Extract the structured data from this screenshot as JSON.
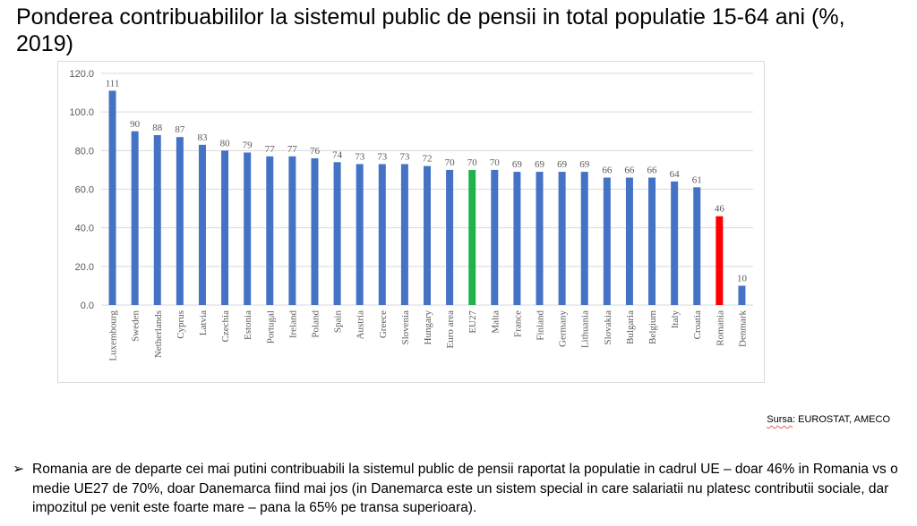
{
  "page": {
    "title": "Ponderea contribuabililor la sistemul public de pensii in total populatie 15-64 ani (%, 2019)",
    "source_label": "Sursa",
    "source_text": ": EUROSTAT, AMECO",
    "bullet_marker": "➢",
    "bullet_text": "Romania are de departe cei mai putini contribuabili la sistemul public de pensii raportat la populatie in cadrul UE – doar 46% in Romania vs o medie UE27 de 70%, doar Danemarca fiind mai jos (in Danemarca este un sistem special in care salariatii nu platesc contributii sociale, dar impozitul pe venit este foarte mare – pana la 65% pe transa superioara)."
  },
  "chart_data": {
    "type": "bar",
    "title": "",
    "xlabel": "",
    "ylabel": "",
    "ylim": [
      0,
      120
    ],
    "yticks": [
      "0.0",
      "20.0",
      "40.0",
      "60.0",
      "80.0",
      "100.0",
      "120.0"
    ],
    "grid": true,
    "categories": [
      "Luxembourg",
      "Sweden",
      "Netherlands",
      "Cyprus",
      "Latvia",
      "Czechia",
      "Estonia",
      "Portugal",
      "Ireland",
      "Poland",
      "Spain",
      "Austria",
      "Greece",
      "Slovenia",
      "Hungary",
      "Euro area",
      "EU27",
      "Malta",
      "France",
      "Finland",
      "Germany",
      "Lithuania",
      "Slovakia",
      "Bulgaria",
      "Belgium",
      "Italy",
      "Croatia",
      "Romania",
      "Denmark"
    ],
    "values": [
      111,
      90,
      88,
      87,
      83,
      80,
      79,
      77,
      77,
      76,
      74,
      73,
      73,
      73,
      72,
      70,
      70,
      70,
      69,
      69,
      69,
      69,
      66,
      66,
      66,
      64,
      61,
      46,
      10
    ],
    "colors": {
      "default": "#4472c4",
      "highlight": {
        "EU27": "#21b24b",
        "Romania": "#ff0000"
      },
      "grid": "#d9d9d9",
      "axis_text": "#595959"
    }
  }
}
